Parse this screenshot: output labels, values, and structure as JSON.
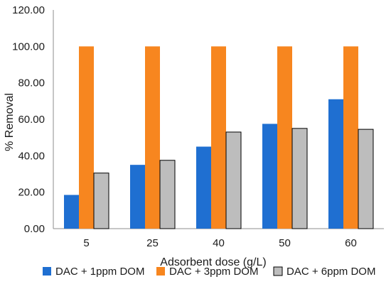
{
  "chart_data": {
    "type": "bar",
    "title": "",
    "xlabel": "Adsorbent dose (g/L)",
    "ylabel": "% Removal",
    "categories": [
      "5",
      "25",
      "40",
      "50",
      "60"
    ],
    "ylim": [
      0,
      120
    ],
    "yticks": [
      "0.00",
      "20.00",
      "40.00",
      "60.00",
      "80.00",
      "100.00",
      "120.00"
    ],
    "grid": false,
    "legend_position": "bottom",
    "series": [
      {
        "name": "DAC + 1ppm DOM",
        "color": "#1f6fd1",
        "values": [
          18.5,
          35,
          45,
          57.5,
          71
        ]
      },
      {
        "name": "DAC + 3ppm DOM",
        "color": "#f7861f",
        "values": [
          100,
          100,
          100,
          100,
          100
        ]
      },
      {
        "name": "DAC + 6ppm DOM",
        "color": "#bdbdbd",
        "values": [
          30.5,
          37.5,
          53,
          55,
          54.5
        ]
      }
    ]
  }
}
